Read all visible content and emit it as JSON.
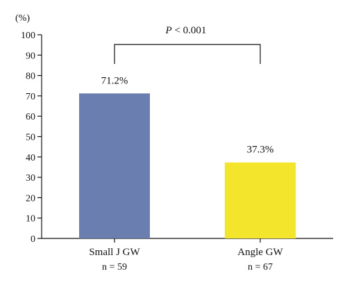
{
  "chart_data": {
    "type": "bar",
    "ylabel": "(%)",
    "ylim": [
      0,
      100
    ],
    "yticks": [
      0,
      10,
      20,
      30,
      40,
      50,
      60,
      70,
      80,
      90,
      100
    ],
    "categories": [
      "Small J GW",
      "Angle GW"
    ],
    "sample_sizes": [
      "n = 59",
      "n = 67"
    ],
    "values": [
      71.2,
      37.3
    ],
    "data_labels": [
      "71.2%",
      "37.3%"
    ],
    "colors": [
      "#6a7fb0",
      "#f2e52c"
    ],
    "significance": {
      "p_symbol": "P",
      "p_rest": " < 0.001"
    },
    "grid": false
  }
}
